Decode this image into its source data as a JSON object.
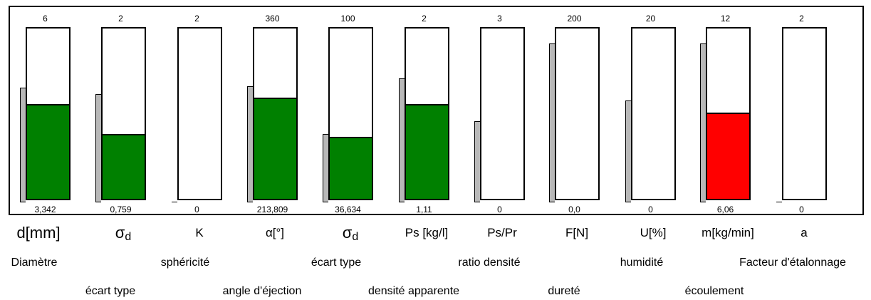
{
  "colors": {
    "ok_fill": "#008000",
    "alarm_fill": "#ff0000",
    "marker": "#b8b8b8",
    "gauge_bg": "#ffffff",
    "border": "#000000"
  },
  "gauges": [
    {
      "max": "6",
      "current": "3,342",
      "symbol": "d[mm]",
      "symbol_kind": "big",
      "description": "Diamètre",
      "fill_fraction": 0.557,
      "fill_color": "green",
      "marker_fraction": 0.72
    },
    {
      "max": "2",
      "current": "0,759",
      "symbol": "σ",
      "symbol_sub": "d",
      "symbol_kind": "sigma",
      "description": "écart type",
      "fill_fraction": 0.38,
      "fill_color": "green",
      "marker_fraction": 0.68
    },
    {
      "max": "2",
      "current": "0",
      "symbol": "K",
      "symbol_kind": "normal",
      "description": "sphéricité",
      "fill_fraction": 0.0,
      "fill_color": "green",
      "marker_fraction": 0.0
    },
    {
      "max": "360",
      "current": "213,809",
      "symbol": "α[°]",
      "symbol_kind": "normal",
      "description": "angle d'éjection",
      "fill_fraction": 0.594,
      "fill_color": "green",
      "marker_fraction": 0.73
    },
    {
      "max": "100",
      "current": "36,634",
      "symbol": "σ",
      "symbol_sub": "d",
      "symbol_kind": "sigma",
      "description": "écart type",
      "fill_fraction": 0.366,
      "fill_color": "green",
      "marker_fraction": 0.43
    },
    {
      "max": "2",
      "current": "1,11",
      "symbol": "Ps [kg/l]",
      "symbol_kind": "normal",
      "description": "densité apparente",
      "fill_fraction": 0.555,
      "fill_color": "green",
      "marker_fraction": 0.78
    },
    {
      "max": "3",
      "current": "0",
      "symbol": "Ps/Pr",
      "symbol_kind": "normal",
      "description": "ratio densité",
      "fill_fraction": 0.0,
      "fill_color": "green",
      "marker_fraction": 0.51
    },
    {
      "max": "200",
      "current": "0,0",
      "symbol": "F[N]",
      "symbol_kind": "normal",
      "description": "dureté",
      "fill_fraction": 0.0,
      "fill_color": "green",
      "marker_fraction": 1.0
    },
    {
      "max": "20",
      "current": "0",
      "symbol": "U[%]",
      "symbol_kind": "normal",
      "description": "humidité",
      "fill_fraction": 0.0,
      "fill_color": "green",
      "marker_fraction": 0.64
    },
    {
      "max": "12",
      "current": "6,06",
      "symbol": "m[kg/min]",
      "symbol_kind": "normal",
      "description": "écoulement",
      "fill_fraction": 0.505,
      "fill_color": "red",
      "marker_fraction": 1.0
    },
    {
      "max": "2",
      "current": "0",
      "symbol": "a",
      "symbol_kind": "normal",
      "description": "Facteur d'étalonnage",
      "fill_fraction": 0.0,
      "fill_color": "green",
      "marker_fraction": 0.0
    }
  ]
}
